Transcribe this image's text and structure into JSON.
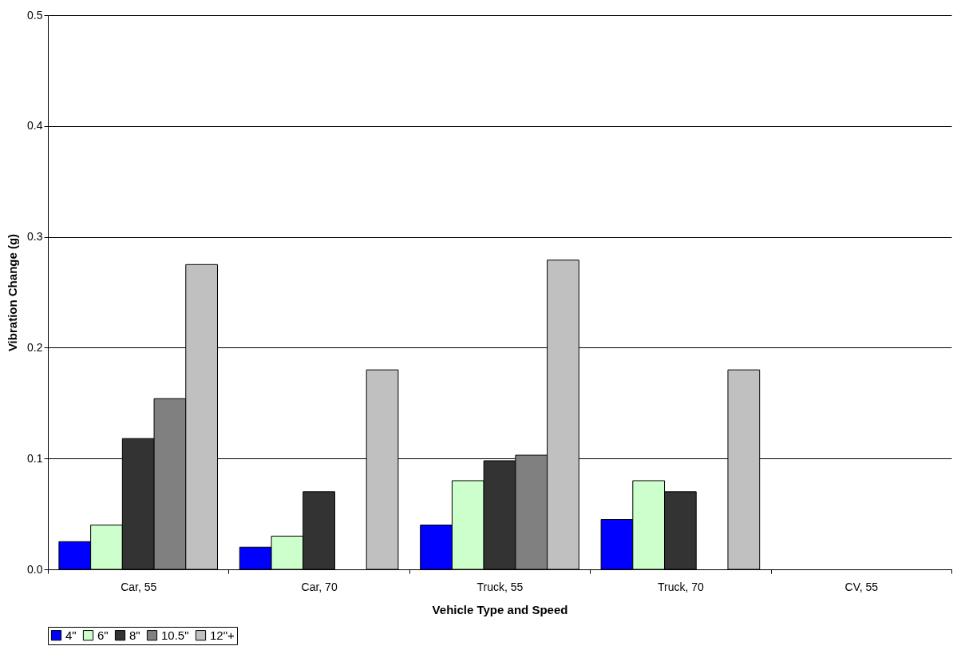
{
  "chart_data": {
    "type": "bar",
    "xlabel": "Vehicle Type and Speed",
    "ylabel": "Vibration Change (g)",
    "categories": [
      "Car, 55",
      "Car, 70",
      "Truck, 55",
      "Truck, 70",
      "CV, 55"
    ],
    "series": [
      {
        "name": "4\"",
        "color": "#0000ff",
        "values": [
          0.025,
          0.02,
          0.04,
          0.045,
          null
        ]
      },
      {
        "name": "6\"",
        "color": "#ccffcc",
        "values": [
          0.04,
          0.03,
          0.08,
          0.08,
          null
        ]
      },
      {
        "name": "8\"",
        "color": "#333333",
        "values": [
          0.118,
          0.07,
          0.098,
          0.07,
          null
        ]
      },
      {
        "name": "10.5\"",
        "color": "#808080",
        "values": [
          0.154,
          null,
          0.103,
          null,
          null
        ]
      },
      {
        "name": "12\"+",
        "color": "#c0c0c0",
        "values": [
          0.275,
          0.18,
          0.279,
          0.18,
          null
        ]
      }
    ],
    "ylim": [
      0,
      0.5
    ],
    "yticks": [
      {
        "value": 0,
        "label": "0.0"
      },
      {
        "value": 0.1,
        "label": "0.1"
      },
      {
        "value": 0.2,
        "label": "0.2"
      },
      {
        "value": 0.3,
        "label": "0.3"
      },
      {
        "value": 0.4,
        "label": "0.4"
      },
      {
        "value": 0.5,
        "label": "0.5"
      }
    ],
    "grid": "y",
    "legend": "bottom"
  }
}
